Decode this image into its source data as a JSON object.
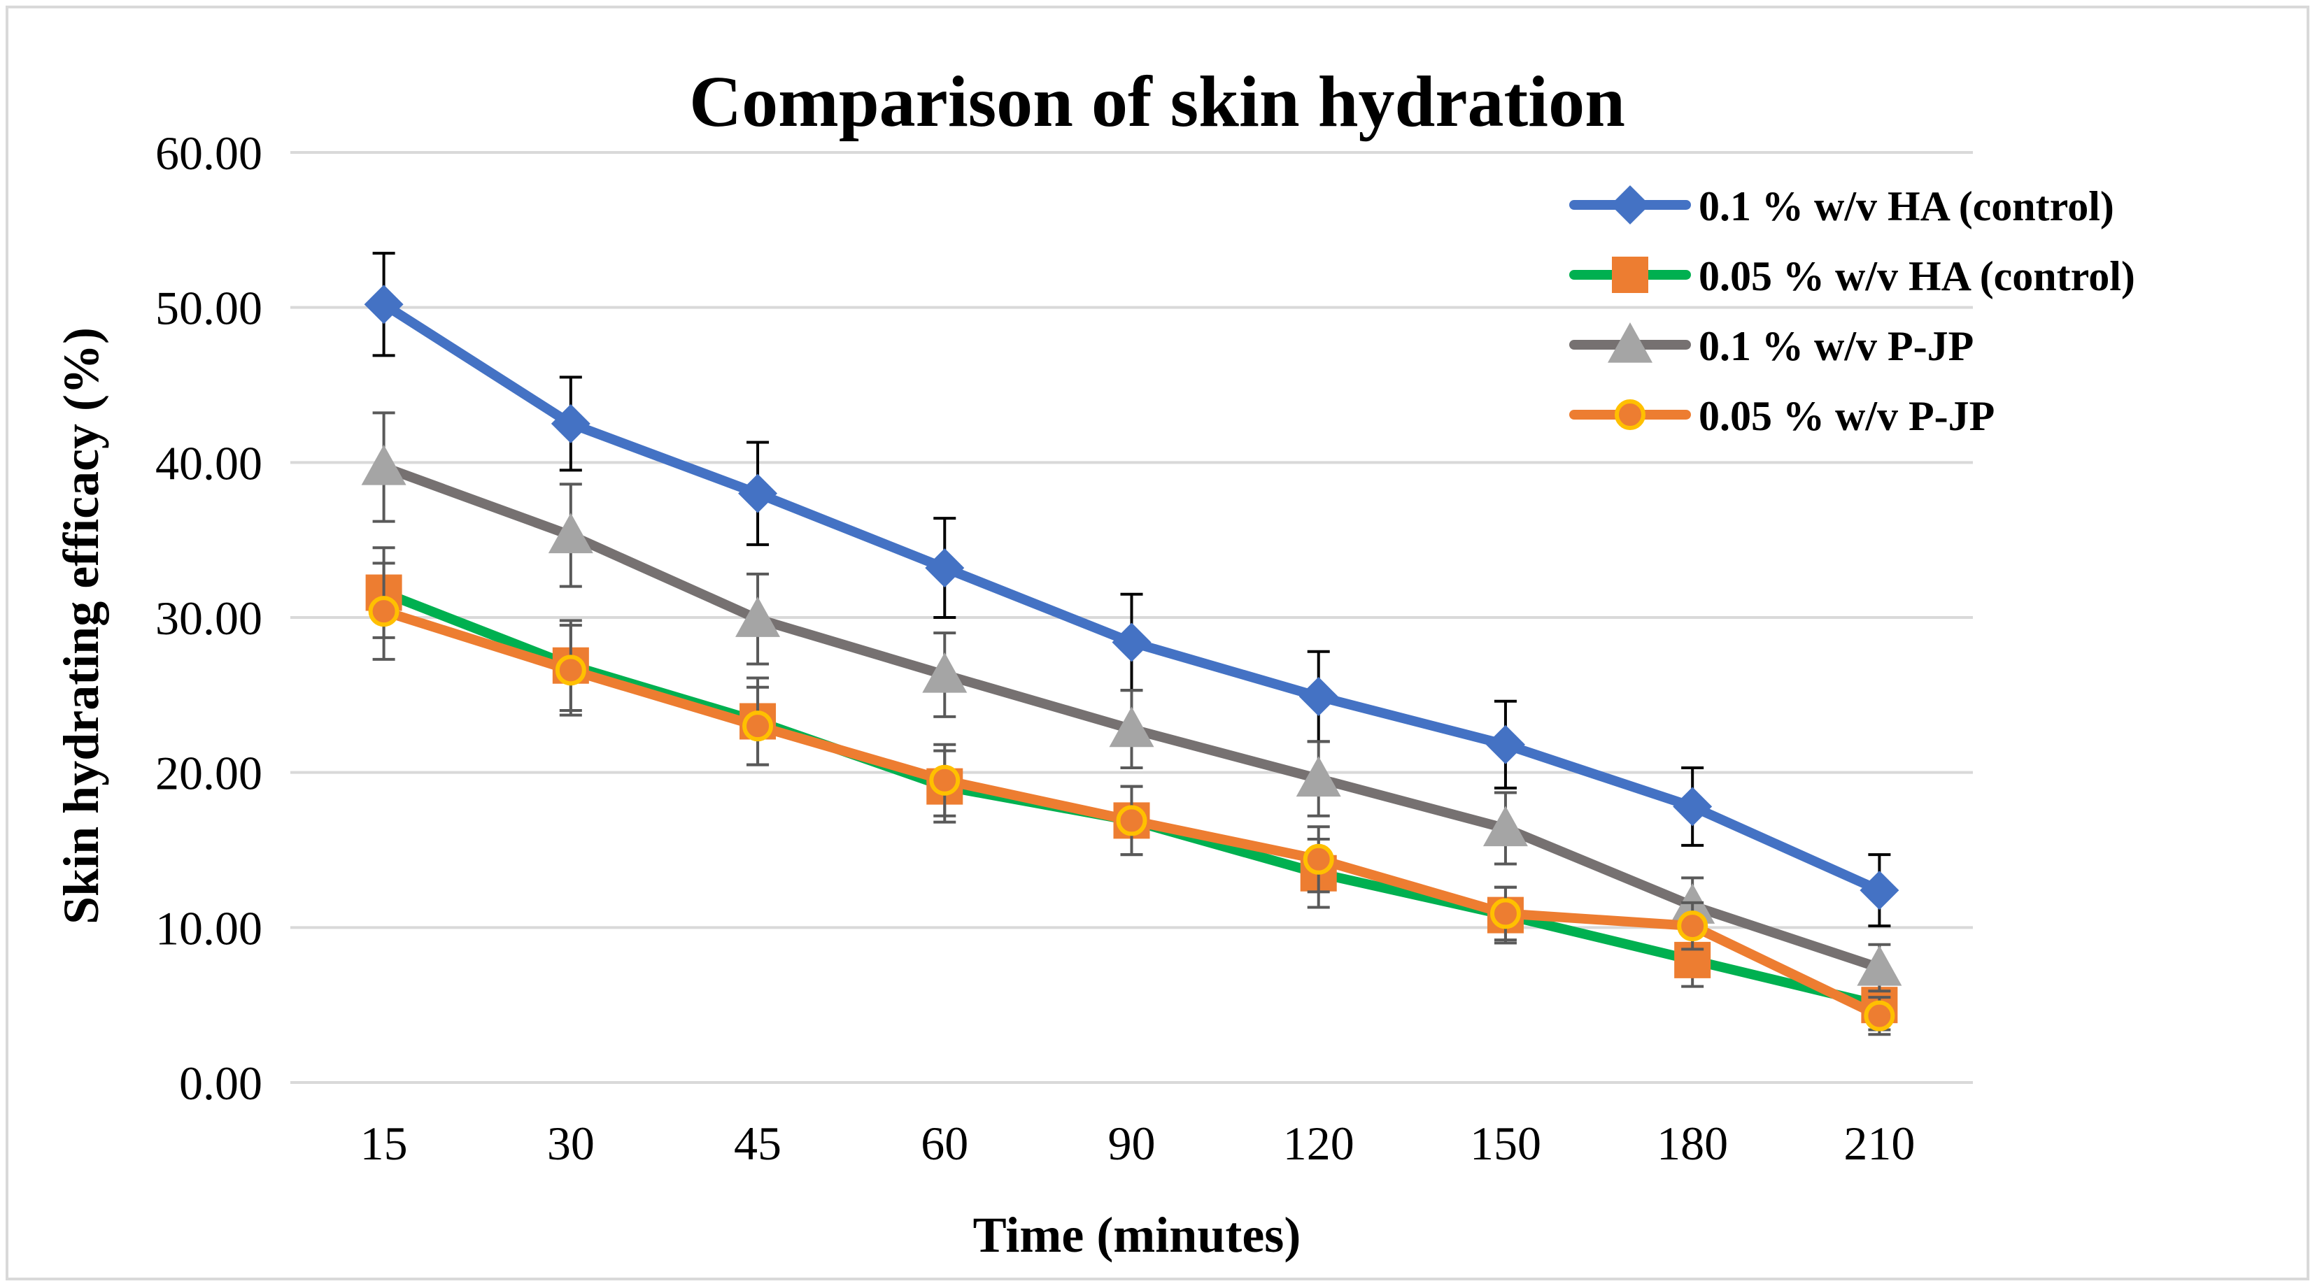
{
  "chart_data": {
    "type": "line",
    "title": "Comparison of skin hydration",
    "xlabel": "Time (minutes)",
    "ylabel": "Skin hydrating efficacy (%)",
    "categories": [
      "15",
      "30",
      "45",
      "60",
      "90",
      "120",
      "150",
      "180",
      "210"
    ],
    "ylim": [
      0,
      60
    ],
    "yticks": [
      "0.00",
      "10.00",
      "20.00",
      "30.00",
      "40.00",
      "50.00",
      "60.00"
    ],
    "grid": true,
    "legend_position": "top-right",
    "series": [
      {
        "name": "0.1 % w/v HA (control)",
        "line_color": "#4472C4",
        "marker": "diamond",
        "marker_color": "#4472C4",
        "values": [
          50.2,
          42.5,
          38.0,
          33.2,
          28.4,
          24.9,
          21.8,
          17.8,
          12.4
        ],
        "errors": [
          3.3,
          3.0,
          3.3,
          3.2,
          3.1,
          2.9,
          2.8,
          2.5,
          2.3
        ]
      },
      {
        "name": "0.05 % w/v HA (control)",
        "line_color": "#00B050",
        "marker": "square",
        "marker_color": "#ED7D31",
        "values": [
          31.6,
          26.9,
          23.3,
          19.1,
          16.9,
          13.5,
          10.8,
          7.9,
          5.0
        ],
        "errors": [
          2.9,
          2.9,
          2.8,
          2.3,
          2.2,
          2.2,
          1.8,
          1.7,
          1.6
        ]
      },
      {
        "name": "0.1 % w/v P-JP",
        "line_color": "#767171",
        "marker": "triangle",
        "marker_color": "#A5A5A5",
        "values": [
          39.7,
          35.3,
          29.9,
          26.3,
          22.8,
          19.6,
          16.4,
          11.4,
          7.4
        ],
        "errors": [
          3.5,
          3.3,
          2.9,
          2.7,
          2.5,
          2.4,
          2.3,
          1.8,
          1.5
        ]
      },
      {
        "name": "0.05 % w/v P-JP",
        "line_color": "#ED7D31",
        "marker": "circle",
        "marker_color": "#ED7D31",
        "marker_edge_color": "#FFC000",
        "values": [
          30.4,
          26.6,
          23.0,
          19.5,
          16.9,
          14.4,
          10.9,
          10.1,
          4.3
        ],
        "errors": [
          3.1,
          2.9,
          2.5,
          2.3,
          2.2,
          2.1,
          1.7,
          1.5,
          1.2
        ]
      }
    ]
  }
}
